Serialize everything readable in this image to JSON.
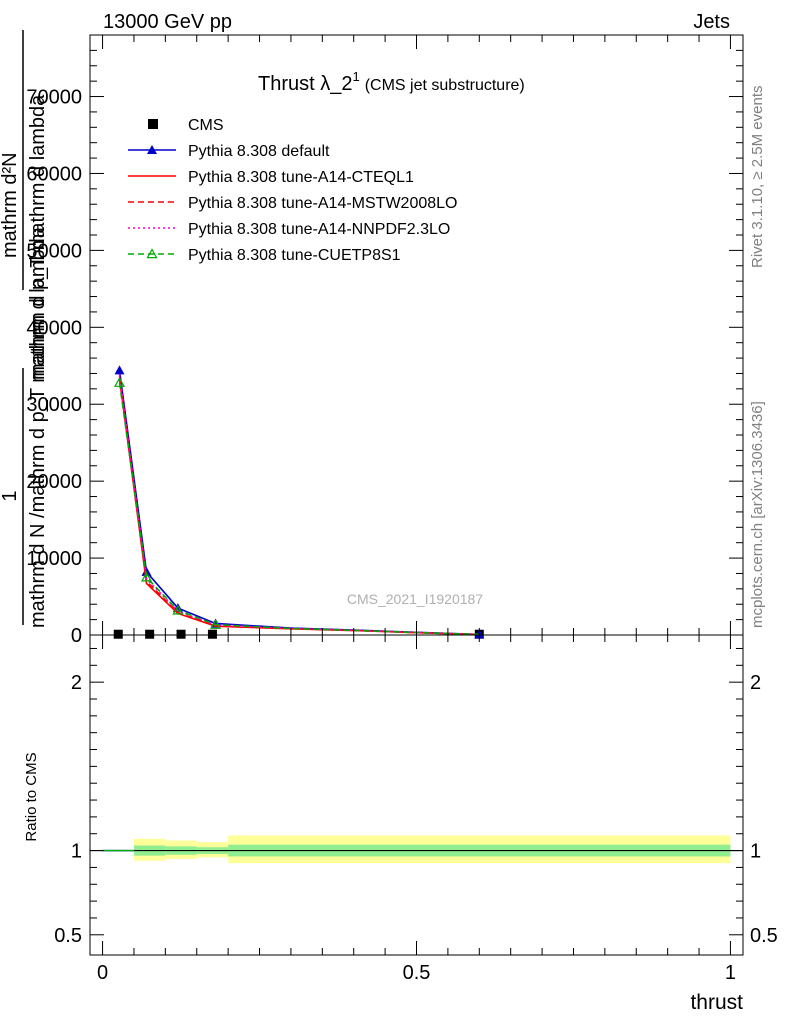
{
  "header": {
    "left": "13000 GeV pp",
    "right": "Jets"
  },
  "side_labels": {
    "rivet": "Rivet 3.1.10, ≥ 2.5M events",
    "mcplots": "mcplots.cern.ch [arXiv:1306.3436]"
  },
  "watermark": "CMS_2021_I1920187",
  "chart_data": [
    {
      "type": "line",
      "panel": "main",
      "title": "Thrust λ_2",
      "title_superscript": "1",
      "subtitle": "(CMS jet substructure)",
      "xlabel": "",
      "ylabel_lines": [
        "1",
        "mathrm d N /mathrm d p_T mathrm d lambda",
        "mathrm d²N",
        "mathrm d p_T mathrm d lambda"
      ],
      "xlim": [
        -0.02,
        1.02
      ],
      "ylim": [
        0,
        78000
      ],
      "yticks": [
        0,
        10000,
        20000,
        30000,
        40000,
        50000,
        60000,
        70000
      ],
      "ytick_labels": [
        "0",
        "10000",
        "20000",
        "30000",
        "40000",
        "50000",
        "60000",
        "70000"
      ],
      "x_minor_step": 0.05,
      "y_minor_step": 2000,
      "legend_position": "top-left",
      "series": [
        {
          "name": "CMS",
          "style": "marker",
          "color": "#000000",
          "marker": "square",
          "x": [
            0.025,
            0.075,
            0.125,
            0.175,
            0.6
          ],
          "values": [
            100,
            100,
            100,
            100,
            100
          ]
        },
        {
          "name": "Pythia 8.308 default",
          "style": "solid",
          "color": "#0000cc",
          "marker": "triangle-filled",
          "x": [
            0.027,
            0.07,
            0.12,
            0.18,
            0.3,
            0.4,
            0.5,
            0.6
          ],
          "values": [
            34400,
            8200,
            3500,
            1500,
            900,
            650,
            350,
            80
          ],
          "marker_idx": [
            0,
            1,
            2,
            3,
            7
          ]
        },
        {
          "name": "Pythia 8.308 tune-A14-CTEQL1",
          "style": "solid",
          "color": "#ff0000",
          "marker": "",
          "x": [
            0.027,
            0.07,
            0.12,
            0.18,
            0.3,
            0.4,
            0.5,
            0.6
          ],
          "values": [
            33300,
            6700,
            2800,
            1150,
            800,
            580,
            300,
            60
          ]
        },
        {
          "name": "Pythia 8.308 tune-A14-MSTW2008LO",
          "style": "dashed",
          "color": "#ff0000",
          "marker": "",
          "x": [
            0.027,
            0.07,
            0.12,
            0.18,
            0.3,
            0.4,
            0.5,
            0.6
          ],
          "values": [
            33600,
            7000,
            2900,
            1200,
            820,
            590,
            310,
            60
          ]
        },
        {
          "name": "Pythia 8.308 tune-A14-NNPDF2.3LO",
          "style": "dotted",
          "color": "#ff00cc",
          "marker": "",
          "x": [
            0.027,
            0.07,
            0.12,
            0.18,
            0.3,
            0.4,
            0.5,
            0.6
          ],
          "values": [
            33900,
            7300,
            3100,
            1300,
            850,
            610,
            320,
            70
          ]
        },
        {
          "name": "Pythia 8.308 tune-CUETP8S1",
          "style": "dashed",
          "color": "#00aa00",
          "marker": "triangle-open",
          "x": [
            0.027,
            0.07,
            0.12,
            0.18,
            0.3,
            0.4,
            0.5,
            0.6
          ],
          "values": [
            32800,
            7500,
            3200,
            1350,
            850,
            600,
            320,
            70
          ],
          "marker_idx": [
            0,
            1,
            2,
            3
          ]
        }
      ]
    },
    {
      "type": "area",
      "panel": "ratio",
      "ylabel": "Ratio to CMS",
      "xlabel": "thrust",
      "xlim": [
        -0.02,
        1.02
      ],
      "ylim": [
        0.38,
        2.28
      ],
      "yticks": [
        0.5,
        1,
        2
      ],
      "ytick_labels": [
        "0.5",
        "1",
        "2"
      ],
      "xticks": [
        0,
        0.5,
        1
      ],
      "xtick_labels": [
        "0",
        "0.5",
        "1"
      ],
      "x_minor_step": 0.05,
      "y_minor_values": [
        0.6,
        0.7,
        0.8,
        0.9,
        1.1,
        1.2,
        1.3,
        1.4,
        1.5,
        1.6,
        1.7,
        1.8,
        1.9,
        2.1,
        2.2
      ],
      "band_colors": {
        "inner": "#90ee90",
        "outer": "#ffff99"
      },
      "bins": [
        {
          "x0": 0.05,
          "x1": 0.1,
          "inner": [
            0.97,
            1.03
          ],
          "outer": [
            0.94,
            1.07
          ]
        },
        {
          "x0": 0.1,
          "x1": 0.15,
          "inner": [
            0.975,
            1.025
          ],
          "outer": [
            0.95,
            1.06
          ]
        },
        {
          "x0": 0.15,
          "x1": 0.2,
          "inner": [
            0.98,
            1.02
          ],
          "outer": [
            0.96,
            1.05
          ]
        },
        {
          "x0": 0.2,
          "x1": 1.0,
          "inner": [
            0.965,
            1.035
          ],
          "outer": [
            0.925,
            1.09
          ]
        }
      ],
      "reference_line": 1,
      "series": [
        {
          "name": "Pythia 8.308 default",
          "color": "#0000cc",
          "x": [
            0.0,
            0.05
          ],
          "values": [
            1.0,
            1.0
          ]
        },
        {
          "name": "Pythia 8.308 tune-CUETP8S1",
          "color": "#00aa00",
          "x": [
            0.0,
            0.05
          ],
          "values": [
            1.0,
            1.0
          ]
        }
      ]
    }
  ]
}
